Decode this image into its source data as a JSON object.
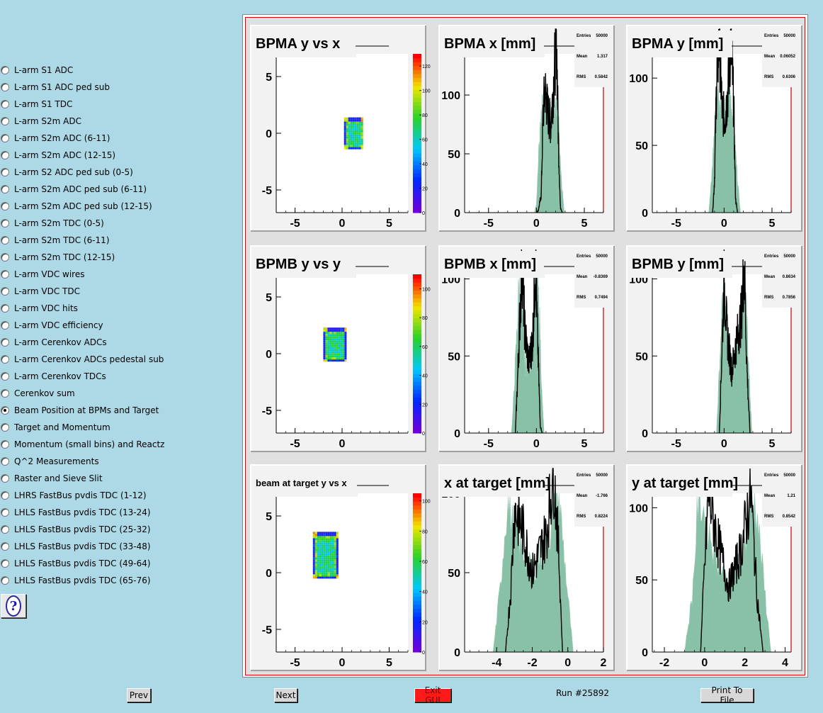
{
  "menu": {
    "items": [
      "L-arm S1 ADC",
      "L-arm S1 ADC ped sub",
      "L-arm S1 TDC",
      "L-arm S2m ADC",
      "L-arm S2m ADC (6-11)",
      "L-arm S2m ADC (12-15)",
      "L-arm S2 ADC ped sub (0-5)",
      "L-arm S2m ADC ped sub (6-11)",
      "L-arm S2m ADC ped sub (12-15)",
      "L-arm S2m TDC (0-5)",
      "L-arm S2m TDC (6-11)",
      "L-arm S2m TDC (12-15)",
      "L-arm VDC wires",
      "L-arm VDC TDC",
      "L-arm VDC hits",
      "L-arm VDC efficiency",
      "L-arm Cerenkov ADCs",
      "L-arm Cerenkov ADCs pedestal sub",
      "L-arm Cerenkov TDCs",
      "Cerenkov sum",
      "Beam Position at BPMs and Target",
      "Target and Momentum",
      "Momentum (small bins) and Reactz",
      "Q^2 Measurements",
      "Raster and Sieve Slit",
      "LHRS FastBus pvdis TDC (1-12)",
      "LHLS FastBus pvdis TDC (13-24)",
      "LHLS FastBus pvdis TDC (25-32)",
      "LHLS FastBus pvdis TDC (33-48)",
      "LHLS FastBus pvdis TDC (49-64)",
      "LHLS FastBus pvdis TDC (65-76)"
    ],
    "selected_index": 20,
    "help_icon": "question-mark-icon"
  },
  "bottom": {
    "prev": "Prev",
    "next": "Next",
    "exit": "Exit GUI",
    "run": "Run #25892",
    "print": "Print To File"
  },
  "colors": {
    "background": "#add8e6",
    "hist_fill": "#88c0a8",
    "hist_line": "#000000",
    "canvas_border": "#e00000",
    "axis_red": "#c00000"
  },
  "chart_data": [
    {
      "type": "heatmap",
      "id": "bpma-yx",
      "title": "BPMA y vs x",
      "x_ticks": [
        "-5",
        "0",
        "5"
      ],
      "y_ticks": [
        "5",
        "0",
        "-5"
      ],
      "xlim": [
        -7,
        7
      ],
      "ylim": [
        -7,
        7
      ],
      "z_ticks": [
        "0",
        "20",
        "40",
        "60",
        "80",
        "100",
        "120"
      ],
      "zlim": [
        0,
        130
      ],
      "spot": {
        "x_range": [
          0.2,
          2.2
        ],
        "y_range": [
          -1.3,
          1.4
        ]
      }
    },
    {
      "type": "bar",
      "id": "bpma-x",
      "title": "BPMA x [mm]",
      "stats": {
        "Entries": "50000",
        "Mean": "1.317",
        "RMS": "0.5842"
      },
      "x_ticks": [
        "-5",
        "0",
        "5"
      ],
      "y_ticks": [
        "0",
        "50",
        "100"
      ],
      "xlim": [
        -7.5,
        7
      ],
      "ylim": [
        0,
        135
      ],
      "filled": [
        [
          -0.2,
          0
        ],
        [
          0,
          8
        ],
        [
          0.3,
          60
        ],
        [
          0.7,
          95
        ],
        [
          1.1,
          90
        ],
        [
          1.5,
          80
        ],
        [
          1.9,
          95
        ],
        [
          2.3,
          80
        ],
        [
          2.6,
          30
        ],
        [
          2.9,
          0
        ]
      ],
      "line": [
        [
          0,
          0
        ],
        [
          0.2,
          2
        ],
        [
          0.5,
          15
        ],
        [
          0.7,
          85
        ],
        [
          0.9,
          105
        ],
        [
          1.2,
          85
        ],
        [
          1.5,
          75
        ],
        [
          1.8,
          110
        ],
        [
          2.1,
          150
        ],
        [
          2.3,
          60
        ],
        [
          2.5,
          5
        ],
        [
          2.7,
          0
        ]
      ]
    },
    {
      "type": "bar",
      "id": "bpma-y",
      "title": "BPMA y [mm]",
      "stats": {
        "Entries": "50000",
        "Mean": "0.06052",
        "RMS": "0.6306"
      },
      "x_ticks": [
        "-5",
        "0",
        "5"
      ],
      "y_ticks": [
        "0",
        "50",
        "100"
      ],
      "xlim": [
        -7.5,
        7
      ],
      "ylim": [
        0,
        118
      ],
      "filled": [
        [
          -1.6,
          0
        ],
        [
          -1.3,
          25
        ],
        [
          -1,
          65
        ],
        [
          -0.6,
          90
        ],
        [
          0,
          70
        ],
        [
          0.6,
          90
        ],
        [
          1,
          65
        ],
        [
          1.4,
          25
        ],
        [
          1.7,
          0
        ]
      ],
      "line": [
        [
          -1.2,
          0
        ],
        [
          -1,
          25
        ],
        [
          -0.8,
          95
        ],
        [
          -0.5,
          130
        ],
        [
          -0.2,
          75
        ],
        [
          0.1,
          70
        ],
        [
          0.4,
          90
        ],
        [
          0.7,
          130
        ],
        [
          1,
          80
        ],
        [
          1.2,
          10
        ],
        [
          1.4,
          0
        ]
      ]
    },
    {
      "type": "heatmap",
      "id": "bpmb-yx",
      "title": "BPMB y vs y",
      "x_ticks": [
        "-5",
        "0"
      ],
      "y_ticks": [
        "5",
        "0",
        "-5"
      ],
      "xlim": [
        -7,
        7
      ],
      "ylim": [
        -7,
        7
      ],
      "z_ticks": [
        "0",
        "20",
        "40",
        "60",
        "80",
        "100"
      ],
      "zlim": [
        0,
        110
      ],
      "spot": {
        "x_range": [
          -2,
          0.4
        ],
        "y_range": [
          -0.7,
          2.3
        ]
      }
    },
    {
      "type": "bar",
      "id": "bpmb-x",
      "title": "BPMB x [mm]",
      "stats": {
        "Entries": "50000",
        "Mean": "-0.8369",
        "RMS": "0.7494"
      },
      "x_ticks": [
        "-5",
        "0",
        "5"
      ],
      "y_ticks": [
        "0",
        "50",
        "100"
      ],
      "xlim": [
        -7.5,
        7
      ],
      "ylim": [
        0,
        103
      ],
      "filled": [
        [
          -2.6,
          0
        ],
        [
          -2.4,
          20
        ],
        [
          -2,
          70
        ],
        [
          -1.8,
          100
        ],
        [
          -1.2,
          45
        ],
        [
          -0.6,
          45
        ],
        [
          0,
          100
        ],
        [
          0.3,
          80
        ],
        [
          0.6,
          20
        ],
        [
          0.8,
          0
        ]
      ],
      "line": [
        [
          -2.2,
          0
        ],
        [
          -2,
          30
        ],
        [
          -1.7,
          80
        ],
        [
          -1.5,
          110
        ],
        [
          -1.2,
          65
        ],
        [
          -0.8,
          45
        ],
        [
          -0.4,
          60
        ],
        [
          -0.1,
          110
        ],
        [
          0.2,
          45
        ],
        [
          0.4,
          5
        ],
        [
          0.6,
          0
        ]
      ]
    },
    {
      "type": "bar",
      "id": "bpmb-y",
      "title": "BPMB y [mm]",
      "stats": {
        "Entries": "50000",
        "Mean": "0.8634",
        "RMS": "0.7856"
      },
      "x_ticks": [
        "-5",
        "0",
        "5"
      ],
      "y_ticks": [
        "0",
        "50",
        "100"
      ],
      "xlim": [
        -7.5,
        7
      ],
      "ylim": [
        0,
        103
      ],
      "filled": [
        [
          -0.8,
          0
        ],
        [
          -0.5,
          40
        ],
        [
          -0.1,
          95
        ],
        [
          0.4,
          50
        ],
        [
          1.1,
          45
        ],
        [
          1.6,
          60
        ],
        [
          2.2,
          100
        ],
        [
          2.6,
          40
        ],
        [
          2.9,
          0
        ]
      ],
      "line": [
        [
          -0.5,
          0
        ],
        [
          -0.3,
          40
        ],
        [
          0,
          100
        ],
        [
          0.3,
          65
        ],
        [
          0.8,
          40
        ],
        [
          1.3,
          60
        ],
        [
          1.8,
          75
        ],
        [
          2.1,
          110
        ],
        [
          2.4,
          40
        ],
        [
          2.7,
          0
        ]
      ]
    },
    {
      "type": "heatmap",
      "id": "target-yx",
      "title": "beam at target y vs x",
      "x_ticks": [
        "-5",
        "0",
        "5"
      ],
      "y_ticks": [
        "5",
        "0",
        "-5"
      ],
      "xlim": [
        -7,
        7
      ],
      "ylim": [
        -7,
        7
      ],
      "z_ticks": [
        "0",
        "20",
        "40",
        "60",
        "80",
        "100"
      ],
      "zlim": [
        0,
        105
      ],
      "spot": {
        "x_range": [
          -3.1,
          -0.5
        ],
        "y_range": [
          -0.5,
          3.6
        ]
      }
    },
    {
      "type": "bar",
      "id": "target-x",
      "title": "x at target [mm]",
      "stats": {
        "Entries": "50000",
        "Mean": "-1.766",
        "RMS": "0.8224"
      },
      "x_ticks": [
        "-4",
        "-2",
        "0",
        "2"
      ],
      "y_ticks": [
        "0",
        "50",
        "100"
      ],
      "xlim": [
        -5.8,
        2.0
      ],
      "ylim": [
        0,
        100
      ],
      "filled": [
        [
          -4.2,
          0
        ],
        [
          -3.8,
          40
        ],
        [
          -3.4,
          95
        ],
        [
          -3,
          75
        ],
        [
          -2,
          50
        ],
        [
          -1,
          75
        ],
        [
          -0.6,
          110
        ],
        [
          0,
          35
        ],
        [
          0.3,
          0
        ]
      ],
      "line": [
        [
          -3.5,
          0
        ],
        [
          -3.2,
          40
        ],
        [
          -3,
          90
        ],
        [
          -2.6,
          80
        ],
        [
          -2,
          50
        ],
        [
          -1.2,
          75
        ],
        [
          -0.8,
          115
        ],
        [
          -0.5,
          60
        ],
        [
          -0.3,
          0
        ]
      ]
    },
    {
      "type": "bar",
      "id": "target-y",
      "title": "y at target [mm]",
      "stats": {
        "Entries": "50000",
        "Mean": "1.21",
        "RMS": "0.8542"
      },
      "x_ticks": [
        "-2",
        "0",
        "2",
        "4"
      ],
      "y_ticks": [
        "0",
        "50",
        "100"
      ],
      "xlim": [
        -2.6,
        4.3
      ],
      "ylim": [
        0,
        110
      ],
      "filled": [
        [
          -1,
          0
        ],
        [
          -0.6,
          40
        ],
        [
          -0.3,
          110
        ],
        [
          0.4,
          75
        ],
        [
          1.2,
          45
        ],
        [
          2,
          75
        ],
        [
          2.5,
          110
        ],
        [
          3,
          40
        ],
        [
          3.3,
          0
        ]
      ],
      "line": [
        [
          -0.2,
          0
        ],
        [
          0,
          60
        ],
        [
          0.2,
          110
        ],
        [
          0.6,
          80
        ],
        [
          1.2,
          45
        ],
        [
          1.8,
          70
        ],
        [
          2.3,
          110
        ],
        [
          2.6,
          40
        ],
        [
          2.9,
          0
        ]
      ]
    }
  ]
}
